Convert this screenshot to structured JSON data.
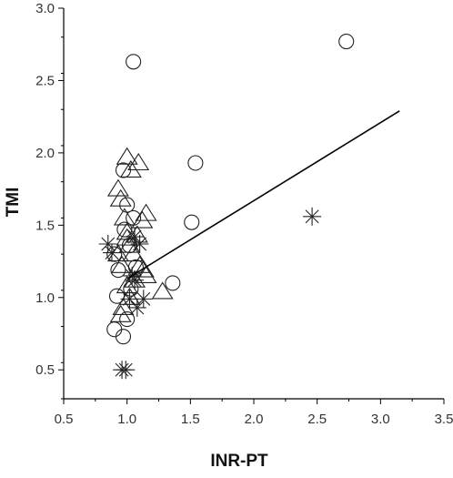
{
  "chart_data": {
    "type": "scatter",
    "title": "",
    "xlabel": "INR-PT",
    "ylabel": "TMI",
    "xlim": [
      0.5,
      3.5
    ],
    "ylim": [
      0.3,
      3.0
    ],
    "xticks": [
      "0.5",
      "1.0",
      "1.5",
      "2.0",
      "2.5",
      "3.0",
      "3.5"
    ],
    "yticks": [
      "0.5",
      "1.0",
      "1.5",
      "2.0",
      "2.5",
      "3.0"
    ],
    "grid": false,
    "legend": "none",
    "series": [
      {
        "marker": "circle",
        "points": [
          [
            1.05,
            2.63
          ],
          [
            2.73,
            2.77
          ],
          [
            1.54,
            1.93
          ],
          [
            1.51,
            1.52
          ],
          [
            1.36,
            1.1
          ],
          [
            0.97,
            1.88
          ],
          [
            1.0,
            1.64
          ],
          [
            0.98,
            1.47
          ],
          [
            0.9,
            1.3
          ],
          [
            0.93,
            1.19
          ],
          [
            0.92,
            1.01
          ],
          [
            0.9,
            0.78
          ],
          [
            0.97,
            0.73
          ],
          [
            1.0,
            0.85
          ],
          [
            1.03,
            1.06
          ],
          [
            1.07,
            1.21
          ],
          [
            1.02,
            1.36
          ],
          [
            1.05,
            1.55
          ]
        ]
      },
      {
        "marker": "triangle",
        "points": [
          [
            1.0,
            1.97
          ],
          [
            1.03,
            1.88
          ],
          [
            1.09,
            1.93
          ],
          [
            0.93,
            1.75
          ],
          [
            0.95,
            1.68
          ],
          [
            0.98,
            1.55
          ],
          [
            1.0,
            1.45
          ],
          [
            1.12,
            1.53
          ],
          [
            1.15,
            1.58
          ],
          [
            1.02,
            1.36
          ],
          [
            1.05,
            1.3
          ],
          [
            0.96,
            1.22
          ],
          [
            0.93,
            1.3
          ],
          [
            1.1,
            1.22
          ],
          [
            1.13,
            1.19
          ],
          [
            1.15,
            1.15
          ],
          [
            1.0,
            1.08
          ],
          [
            1.02,
            1.0
          ],
          [
            0.97,
            0.93
          ],
          [
            0.95,
            0.88
          ],
          [
            1.06,
            1.12
          ],
          [
            1.28,
            1.04
          ],
          [
            1.0,
            1.41
          ],
          [
            1.08,
            1.43
          ]
        ]
      },
      {
        "marker": "asterisk",
        "points": [
          [
            0.85,
            1.37
          ],
          [
            0.88,
            1.31
          ],
          [
            1.06,
            1.42
          ],
          [
            1.1,
            1.37
          ],
          [
            1.04,
            1.15
          ],
          [
            1.06,
            1.12
          ],
          [
            1.02,
            0.99
          ],
          [
            1.08,
            0.93
          ],
          [
            1.13,
            0.99
          ],
          [
            0.96,
            0.5
          ],
          [
            0.99,
            0.5
          ],
          [
            2.46,
            1.56
          ]
        ]
      }
    ],
    "regression_line": {
      "x": [
        1.0,
        3.15
      ],
      "y": [
        1.13,
        2.29
      ]
    }
  }
}
